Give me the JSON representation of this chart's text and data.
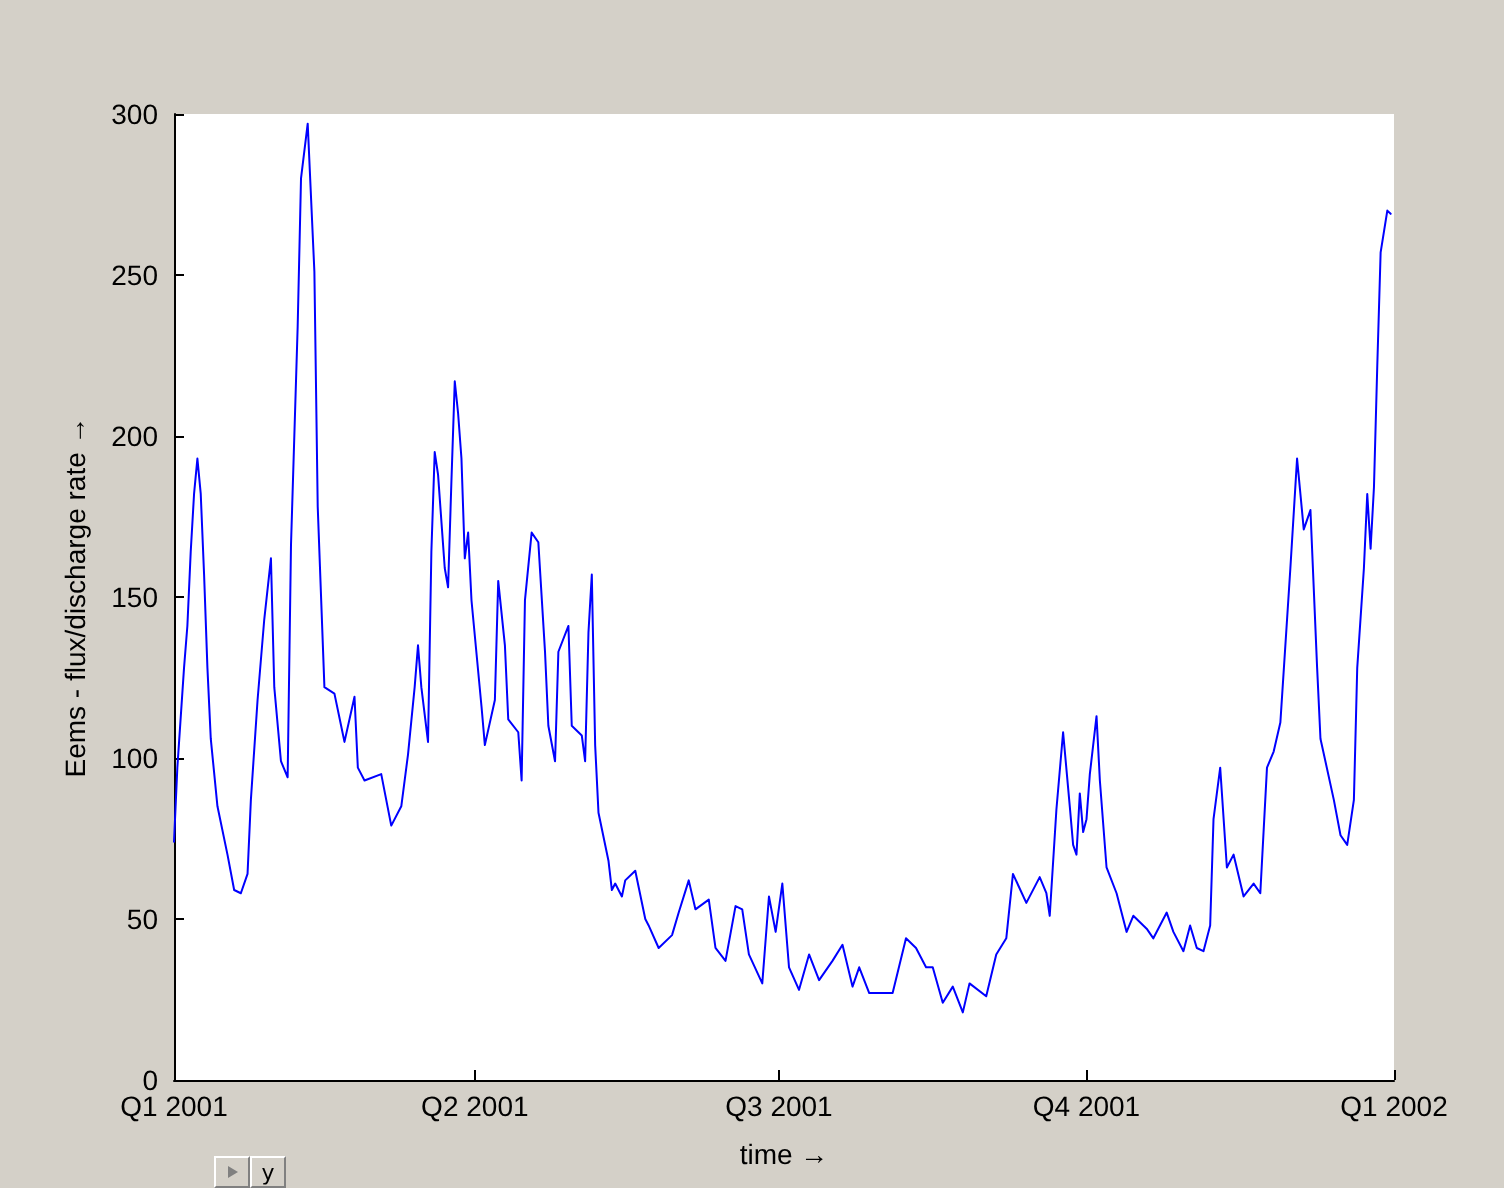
{
  "chart_data": {
    "type": "line",
    "xlabel": "time →",
    "ylabel": "Eems - flux/discharge rate →",
    "xlim": [
      "2001-01-01",
      "2002-01-01"
    ],
    "ylim": [
      0,
      300
    ],
    "yticks": [
      0,
      50,
      100,
      150,
      200,
      250,
      300
    ],
    "xticks": [
      {
        "value": "2001-01-01",
        "label": "Q1 2001"
      },
      {
        "value": "2001-04-01",
        "label": "Q2 2001"
      },
      {
        "value": "2001-07-01",
        "label": "Q3 2001"
      },
      {
        "value": "2001-10-01",
        "label": "Q4 2001"
      },
      {
        "value": "2002-01-01",
        "label": "Q1 2002"
      }
    ],
    "marker": "none",
    "line_style": "solid",
    "annotations": [
      "y"
    ],
    "series": [
      {
        "color": "#0000ff",
        "x": [
          "2001-01-01",
          "2001-01-02",
          "2001-01-04",
          "2001-01-05",
          "2001-01-06",
          "2001-01-07",
          "2001-01-08",
          "2001-01-09",
          "2001-01-10",
          "2001-01-11",
          "2001-01-12",
          "2001-01-14",
          "2001-01-17",
          "2001-01-19",
          "2001-01-21",
          "2001-01-23",
          "2001-01-24",
          "2001-01-26",
          "2001-01-28",
          "2001-01-30",
          "2001-01-31",
          "2001-02-02",
          "2001-02-04",
          "2001-02-05",
          "2001-02-07",
          "2001-02-08",
          "2001-02-10",
          "2001-02-12",
          "2001-02-13",
          "2001-02-15",
          "2001-02-18",
          "2001-02-20",
          "2001-02-21",
          "2001-02-24",
          "2001-02-25",
          "2001-02-27",
          "2001-03-04",
          "2001-03-07",
          "2001-03-10",
          "2001-03-12",
          "2001-03-14",
          "2001-03-15",
          "2001-03-16",
          "2001-03-18",
          "2001-03-19",
          "2001-03-20",
          "2001-03-21",
          "2001-03-23",
          "2001-03-24",
          "2001-03-25",
          "2001-03-26",
          "2001-03-27",
          "2001-03-28",
          "2001-03-29",
          "2001-03-30",
          "2001-03-31",
          "2001-04-03",
          "2001-04-04",
          "2001-04-07",
          "2001-04-08",
          "2001-04-10",
          "2001-04-11",
          "2001-04-14",
          "2001-04-15",
          "2001-04-16",
          "2001-04-18",
          "2001-04-20",
          "2001-04-22",
          "2001-04-23",
          "2001-04-25",
          "2001-04-26",
          "2001-04-29",
          "2001-04-30",
          "2001-05-03",
          "2001-05-04",
          "2001-05-05",
          "2001-05-06",
          "2001-05-07",
          "2001-05-08",
          "2001-05-11",
          "2001-05-12",
          "2001-05-13",
          "2001-05-15",
          "2001-05-16",
          "2001-05-19",
          "2001-05-22",
          "2001-05-23",
          "2001-05-26",
          "2001-05-30",
          "2001-06-01",
          "2001-06-04",
          "2001-06-06",
          "2001-06-10",
          "2001-06-12",
          "2001-06-15",
          "2001-06-18",
          "2001-06-20",
          "2001-06-22",
          "2001-06-26",
          "2001-06-28",
          "2001-06-30",
          "2001-07-02",
          "2001-07-04",
          "2001-07-07",
          "2001-07-10",
          "2001-07-13",
          "2001-07-17",
          "2001-07-20",
          "2001-07-23",
          "2001-07-25",
          "2001-07-28",
          "2001-08-04",
          "2001-08-08",
          "2001-08-11",
          "2001-08-14",
          "2001-08-16",
          "2001-08-19",
          "2001-08-22",
          "2001-08-25",
          "2001-08-27",
          "2001-09-01",
          "2001-09-04",
          "2001-09-07",
          "2001-09-09",
          "2001-09-13",
          "2001-09-17",
          "2001-09-19",
          "2001-09-20",
          "2001-09-22",
          "2001-09-24",
          "2001-09-26",
          "2001-09-27",
          "2001-09-28",
          "2001-09-29",
          "2001-09-30",
          "2001-10-01",
          "2001-10-02",
          "2001-10-04",
          "2001-10-05",
          "2001-10-07",
          "2001-10-10",
          "2001-10-13",
          "2001-10-15",
          "2001-10-19",
          "2001-10-21",
          "2001-10-25",
          "2001-10-27",
          "2001-10-30",
          "2001-11-01",
          "2001-11-03",
          "2001-11-05",
          "2001-11-07",
          "2001-11-08",
          "2001-11-10",
          "2001-11-12",
          "2001-11-14",
          "2001-11-17",
          "2001-11-20",
          "2001-11-22",
          "2001-11-24",
          "2001-11-26",
          "2001-11-28",
          "2001-12-01",
          "2001-12-03",
          "2001-12-05",
          "2001-12-07",
          "2001-12-09",
          "2001-12-10",
          "2001-12-14",
          "2001-12-16",
          "2001-12-18",
          "2001-12-20",
          "2001-12-21",
          "2001-12-23",
          "2001-12-24",
          "2001-12-25",
          "2001-12-26",
          "2001-12-27",
          "2001-12-28",
          "2001-12-30",
          "2001-12-31"
        ],
        "values": [
          74,
          97,
          128,
          141,
          164,
          182,
          193,
          182,
          157,
          128,
          106,
          85,
          70,
          59,
          58,
          64,
          87,
          118,
          143,
          162,
          122,
          99,
          94,
          166,
          234,
          280,
          297,
          251,
          178,
          122,
          120,
          110,
          105,
          119,
          97,
          93,
          95,
          79,
          85,
          101,
          122,
          135,
          122,
          105,
          164,
          195,
          188,
          159,
          153,
          186,
          217,
          207,
          193,
          162,
          170,
          149,
          116,
          104,
          118,
          155,
          135,
          112,
          108,
          93,
          149,
          170,
          167,
          133,
          110,
          99,
          133,
          141,
          110,
          107,
          99,
          139,
          157,
          104,
          83,
          68,
          59,
          61,
          57,
          62,
          65,
          50,
          48,
          41,
          45,
          52,
          62,
          53,
          56,
          41,
          37,
          54,
          53,
          39,
          30,
          57,
          46,
          61,
          35,
          28,
          39,
          31,
          37,
          42,
          29,
          35,
          27,
          27,
          44,
          41,
          35,
          35,
          24,
          29,
          21,
          30,
          26,
          39,
          44,
          64,
          55,
          63,
          58,
          51,
          84,
          108,
          85,
          73,
          70,
          89,
          77,
          81,
          95,
          113,
          93,
          66,
          58,
          46,
          51,
          47,
          44,
          52,
          46,
          40,
          48,
          41,
          40,
          48,
          81,
          97,
          66,
          70,
          57,
          61,
          58,
          97,
          102,
          111,
          159,
          193,
          171,
          177,
          128,
          106,
          87,
          76,
          73,
          87,
          128,
          159,
          182,
          165,
          184,
          222,
          257,
          270,
          269
        ]
      }
    ]
  }
}
